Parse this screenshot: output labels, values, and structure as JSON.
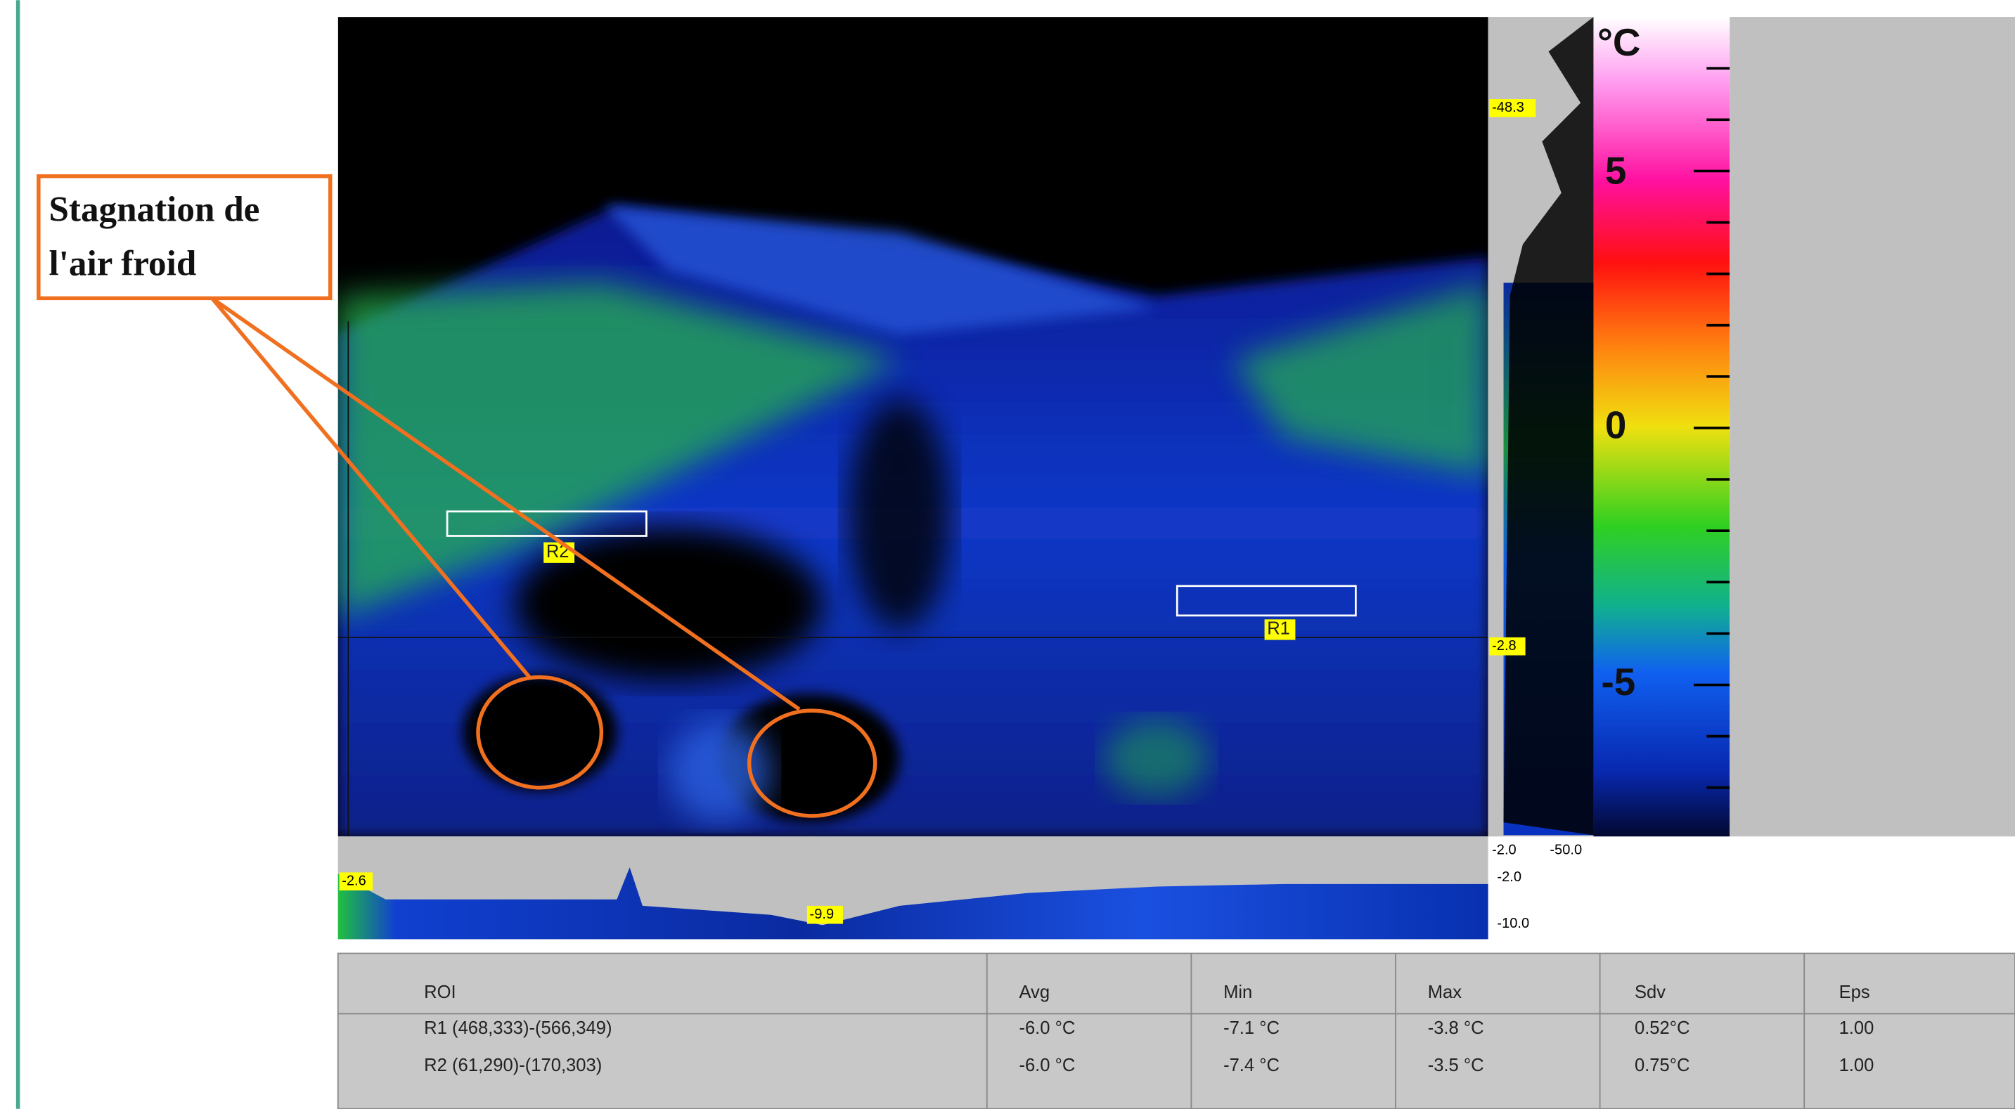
{
  "annotation": {
    "lines": [
      "Stagnation de",
      "l'air froid"
    ]
  },
  "thermal_view": {
    "rois": [
      {
        "label": "R1"
      },
      {
        "label": "R2"
      }
    ],
    "vertical_profile": {
      "top_marker": "-48.3",
      "cursor_marker": "-2.8"
    },
    "horizontal_profile": {
      "left_marker": "-2.6",
      "min_marker": "-9.9"
    },
    "profile_scale": {
      "top_left": "-2.0",
      "top_right": "-50.0",
      "upper": "-2.0",
      "lower": "-10.0"
    },
    "color_scale": {
      "unit": "°C",
      "labels": [
        "5",
        "0",
        "-5"
      ]
    }
  },
  "table": {
    "header": [
      "ROI",
      "Avg",
      "Min",
      "Max",
      "Sdv",
      "Eps"
    ],
    "rows": [
      [
        "R1 (468,333)-(566,349)",
        "-6.0 °C",
        "-7.1 °C",
        "-3.8 °C",
        "0.52°C",
        "1.00"
      ],
      [
        "R2 (61,290)-(170,303)",
        "-6.0 °C",
        "-7.4 °C",
        "-3.5 °C",
        "0.75°C",
        "1.00"
      ]
    ]
  }
}
